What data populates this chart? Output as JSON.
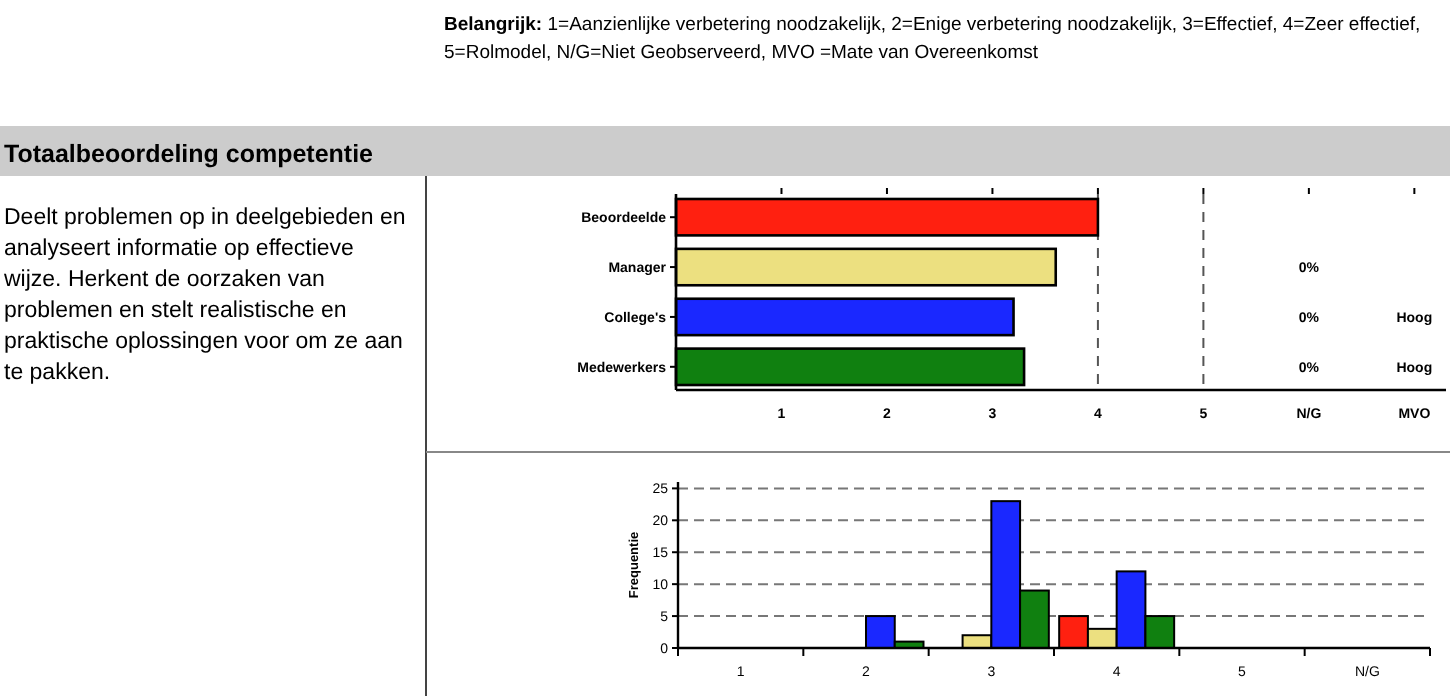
{
  "chart_data": [
    {
      "type": "bar",
      "orientation": "horizontal",
      "categories": [
        "Beoordeelde",
        "Manager",
        "College's",
        "Medewerkers"
      ],
      "values": [
        4.0,
        3.6,
        3.2,
        3.3
      ],
      "colors": [
        "#ff2010",
        "#ece080",
        "#1a28ff",
        "#108010"
      ],
      "xlim": [
        0,
        7.3
      ],
      "xticks": [
        1,
        2,
        3,
        4,
        5,
        {
          "value": 6,
          "label": "N/G"
        },
        {
          "value": 7,
          "label": "MVO"
        }
      ],
      "ref_lines": [
        {
          "axis": "x",
          "value": 4,
          "color": "#555555",
          "line_style": "dashed"
        },
        {
          "axis": "x",
          "value": 5,
          "color": "#555555",
          "line_style": "dashed"
        }
      ],
      "annotations": [
        "Belangrijk: 1=Aanzienlijke verbetering noodzakelijk, 2=Enige verbetering noodzakelijk, 3=Effectief, 4=Zeer effectief, 5=Rolmodel, N/G=Niet Geobserveerd, MVO =Mate van Overeenkomst",
        "Totaalbeoordeling competentie",
        "Deelt problemen op in deelgebieden en analyseert informatie op effectieve wijze. Herkent de oorzaken van problemen en stelt realistische en praktische oplossingen voor om ze aan te pakken.",
        "0%",
        "0%",
        "0%",
        "Hoog",
        "Hoog"
      ]
    },
    {
      "type": "bar",
      "ylabel": "Frequentie",
      "categories": [
        "1",
        "2",
        "3",
        "4",
        "5",
        "N/G"
      ],
      "series": [
        {
          "color": "#ff2010",
          "values": [
            0,
            0,
            0,
            5,
            0,
            0
          ]
        },
        {
          "color": "#ece080",
          "values": [
            0,
            0,
            2,
            3,
            0,
            0
          ]
        },
        {
          "color": "#1a28ff",
          "values": [
            0,
            5,
            23,
            12,
            0,
            0
          ]
        },
        {
          "color": "#108010",
          "values": [
            0,
            1,
            9,
            5,
            0,
            0
          ]
        }
      ],
      "ylim": [
        0,
        26
      ],
      "yticks": [
        0,
        5,
        10,
        15,
        20,
        25
      ],
      "grid": "y"
    }
  ]
}
